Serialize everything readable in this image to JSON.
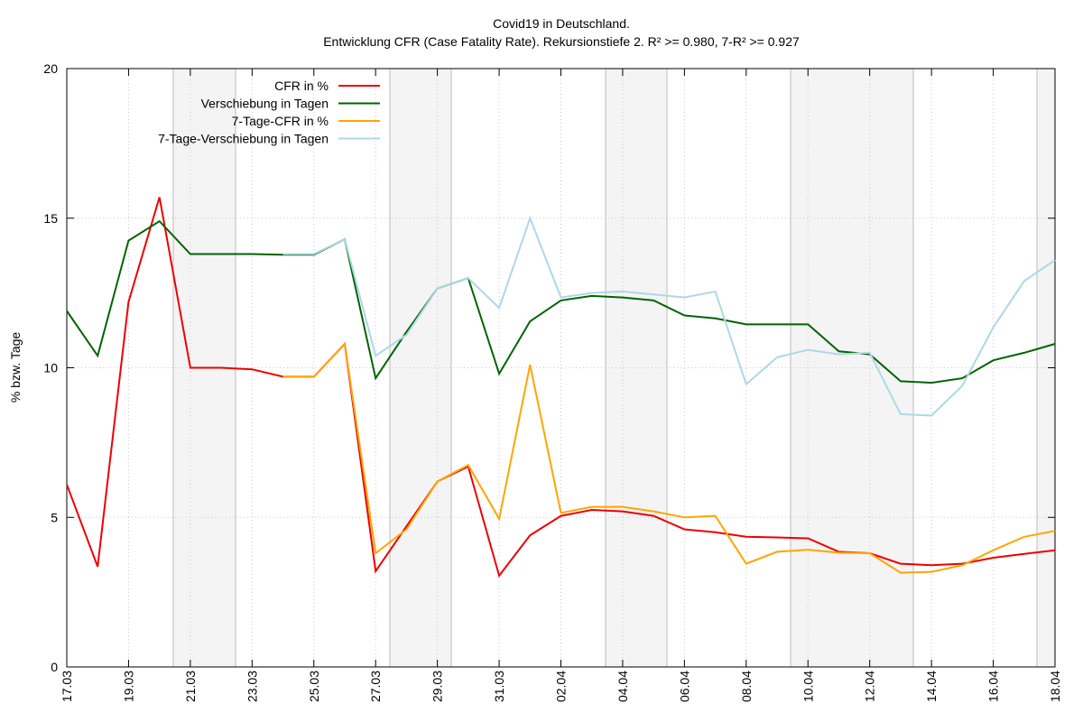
{
  "chart_data": {
    "type": "line",
    "title": "Covid19 in Deutschland.",
    "subtitle": "Entwicklung CFR (Case Fatality Rate). Rekursionstiefe 2. R² >= 0.980, 7-R² >= 0.927",
    "y_label": "% bzw. Tage",
    "categories": [
      "17.03",
      null,
      "19.03",
      null,
      "21.03",
      null,
      "23.03",
      null,
      "25.03",
      null,
      "27.03",
      null,
      "29.03",
      null,
      "31.03",
      null,
      "02.04",
      null,
      "04.04",
      null,
      "06.04",
      null,
      "08.04",
      null,
      "10.04",
      null,
      "12.04",
      null,
      "14.04",
      null,
      "16.04",
      null,
      "18.04"
    ],
    "ylim": [
      0,
      20
    ],
    "yticks": [
      0,
      5,
      10,
      15,
      20
    ],
    "grid": true,
    "legend": "top-left",
    "series": [
      {
        "name": "CFR in %",
        "color": "#ee0000",
        "values": [
          6.1,
          3.35,
          12.2,
          15.7,
          10.0,
          10.0,
          9.95,
          9.7,
          9.7,
          10.8,
          3.2,
          4.7,
          6.2,
          6.7,
          3.05,
          4.4,
          5.05,
          5.25,
          5.2,
          5.05,
          4.6,
          4.5,
          4.35,
          4.33,
          4.3,
          3.85,
          3.8,
          3.45,
          3.4,
          3.45,
          3.65,
          3.78,
          3.9
        ]
      },
      {
        "name": "Verschiebung in Tagen",
        "color": "#006400",
        "values": [
          11.9,
          10.4,
          14.25,
          14.9,
          13.8,
          13.8,
          13.8,
          13.78,
          13.78,
          14.3,
          9.65,
          11.2,
          12.65,
          13.0,
          9.8,
          11.55,
          12.25,
          12.4,
          12.35,
          12.25,
          11.75,
          11.65,
          11.45,
          11.45,
          11.45,
          10.55,
          10.45,
          9.55,
          9.5,
          9.65,
          10.25,
          10.5,
          10.8
        ]
      },
      {
        "name": "7-Tage-CFR in %",
        "color": "#ffa500",
        "values": [
          null,
          null,
          null,
          null,
          null,
          null,
          null,
          9.7,
          9.7,
          10.8,
          3.8,
          4.6,
          6.2,
          6.75,
          4.95,
          10.1,
          5.15,
          5.35,
          5.35,
          5.2,
          5.0,
          5.05,
          3.45,
          3.85,
          3.92,
          3.82,
          3.8,
          3.15,
          3.18,
          3.4,
          3.9,
          4.35,
          4.55
        ]
      },
      {
        "name": "7-Tage-Verschiebung in Tagen",
        "color": "#add8e6",
        "values": [
          null,
          null,
          null,
          null,
          null,
          null,
          null,
          13.8,
          13.8,
          14.3,
          10.4,
          11.1,
          12.65,
          13.0,
          12.0,
          15.0,
          12.35,
          12.5,
          12.55,
          12.45,
          12.35,
          12.55,
          9.45,
          10.35,
          10.6,
          10.45,
          10.5,
          8.45,
          8.4,
          9.4,
          11.35,
          12.9,
          13.6
        ]
      }
    ]
  }
}
